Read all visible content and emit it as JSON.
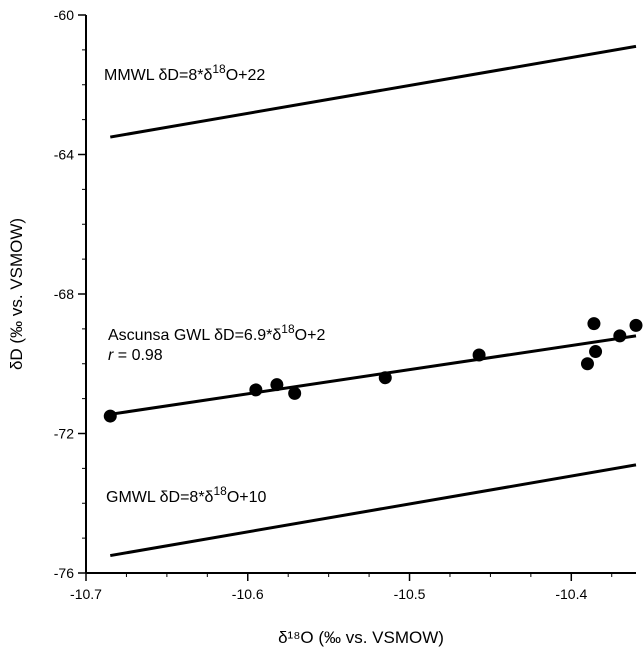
{
  "chart_data": {
    "type": "scatter",
    "title": "",
    "xlabel": "δ¹⁸O (‰ vs. VSMOW)",
    "ylabel": "δD (‰ vs. VSMOW)",
    "xlim": [
      -10.7,
      -10.36
    ],
    "ylim": [
      -76,
      -60
    ],
    "x_ticks": [
      -10.7,
      -10.6,
      -10.5,
      -10.4
    ],
    "x_tick_labels": [
      "-10.7",
      "-10.6",
      "-10.5",
      "-10.4"
    ],
    "y_ticks": [
      -76,
      -72,
      -68,
      -64,
      -60
    ],
    "y_tick_labels": [
      "-76",
      "-72",
      "-68",
      "-64",
      "-60"
    ],
    "grid": false,
    "series": [
      {
        "points": [
          {
            "x": -10.685,
            "y": -71.5
          },
          {
            "x": -10.595,
            "y": -70.75
          },
          {
            "x": -10.582,
            "y": -70.6
          },
          {
            "x": -10.571,
            "y": -70.85
          },
          {
            "x": -10.515,
            "y": -70.4
          },
          {
            "x": -10.457,
            "y": -69.75
          },
          {
            "x": -10.39,
            "y": -70.0
          },
          {
            "x": -10.385,
            "y": -69.65
          },
          {
            "x": -10.386,
            "y": -68.85
          },
          {
            "x": -10.37,
            "y": -69.2
          },
          {
            "x": -10.36,
            "y": -68.9
          }
        ]
      }
    ],
    "lines": [
      {
        "x": [
          -10.685,
          -10.36
        ],
        "y": [
          -63.5,
          -60.9
        ]
      },
      {
        "x": [
          -10.685,
          -10.36
        ],
        "y": [
          -71.45,
          -69.2
        ]
      },
      {
        "x": [
          -10.685,
          -10.36
        ],
        "y": [
          -75.5,
          -72.9
        ]
      }
    ],
    "annotations": [
      {
        "parts": [
          "MMWL  δD=8*δ",
          "18",
          "O+22"
        ]
      },
      {
        "parts": [
          "Ascunsa GWL  δD=6.9*δ",
          "18",
          "O+2"
        ]
      },
      {
        "parts": [
          "r",
          " = 0.98"
        ]
      },
      {
        "parts": [
          "GMWL  δD=8*δ",
          "18",
          "O+10"
        ]
      }
    ]
  }
}
